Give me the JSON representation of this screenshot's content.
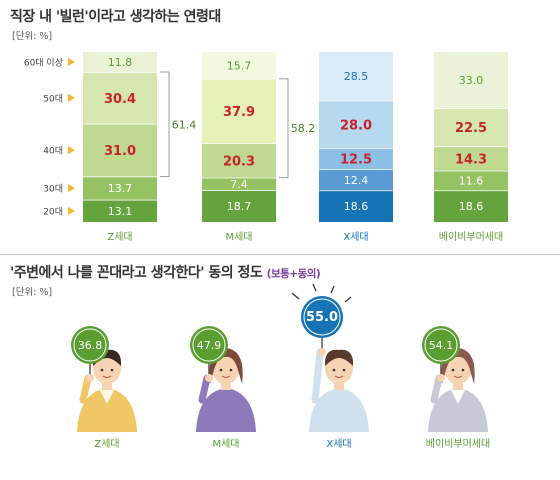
{
  "chart1": {
    "title": "직장 내 '빌런'이라고 생각하는 연령대",
    "unit": "[단위: %]"
  },
  "chart2": {
    "title": "'주변에서 나를 꼰대라고 생각한다' 동의 정도",
    "subtitle": "(보통+동의)",
    "unit": "[단위: %]"
  },
  "colors": {
    "z_bars": [
      "#64a33d",
      "#95c263",
      "#bfd991",
      "#d5e6b0",
      "#eaf3d8"
    ],
    "m_bars": [
      "#64a33d",
      "#95c263",
      "#bfd991",
      "#e6f1b8",
      "#f3f8de"
    ],
    "x_bars": [
      "#1673b5",
      "#5b9bd3",
      "#8cc0e6",
      "#b6d9f0",
      "#d8ecf8"
    ],
    "b_bars": [
      "#64a33d",
      "#95c263",
      "#bfd991",
      "#d5e6b0",
      "#eaf3d8"
    ],
    "label_red": "#c8232c",
    "bracket": "#9aa0a6",
    "arrow": "#f1b72e",
    "sign_green": "#5a9e32",
    "sign_blue": "#1673b5",
    "group_label": "#5a9e32",
    "x_group_label": "#1673b5"
  },
  "chart_data": [
    {
      "type": "bar",
      "stacked": true,
      "title": "직장 내 '빌런'이라고 생각하는 연령대",
      "unit": "[단위: %]",
      "categories": [
        "Z세대",
        "M세대",
        "X세대",
        "베이비부머세대"
      ],
      "series": [
        {
          "name": "20대",
          "values": [
            13.1,
            18.7,
            18.6,
            18.6
          ]
        },
        {
          "name": "30대",
          "values": [
            13.7,
            7.4,
            12.4,
            11.6
          ]
        },
        {
          "name": "40대",
          "values": [
            31.0,
            20.3,
            12.5,
            14.3
          ]
        },
        {
          "name": "50대",
          "values": [
            30.4,
            37.9,
            28.0,
            22.5
          ]
        },
        {
          "name": "60대 이상",
          "values": [
            11.8,
            15.7,
            28.5,
            33.0
          ]
        }
      ],
      "highlight": [
        [
          false,
          false,
          true,
          true,
          false
        ],
        [
          false,
          false,
          true,
          true,
          false
        ],
        [
          false,
          false,
          true,
          true,
          false
        ],
        [
          false,
          false,
          true,
          true,
          false
        ]
      ],
      "brackets": [
        {
          "category": "Z세대",
          "from": "40대",
          "to": "50대",
          "value": "61.4"
        },
        {
          "category": "M세대",
          "from": "40대",
          "to": "50대",
          "value": "58.2"
        }
      ],
      "ylim": [
        0,
        100
      ]
    },
    {
      "type": "bar",
      "title": "'주변에서 나를 꼰대라고 생각한다' 동의 정도",
      "subtitle": "(보통+동의)",
      "unit": "[단위: %]",
      "categories": [
        "Z세대",
        "M세대",
        "X세대",
        "베이비부머세대"
      ],
      "values": [
        36.8,
        47.9,
        55.0,
        54.1
      ],
      "highlight_index": 2
    }
  ]
}
